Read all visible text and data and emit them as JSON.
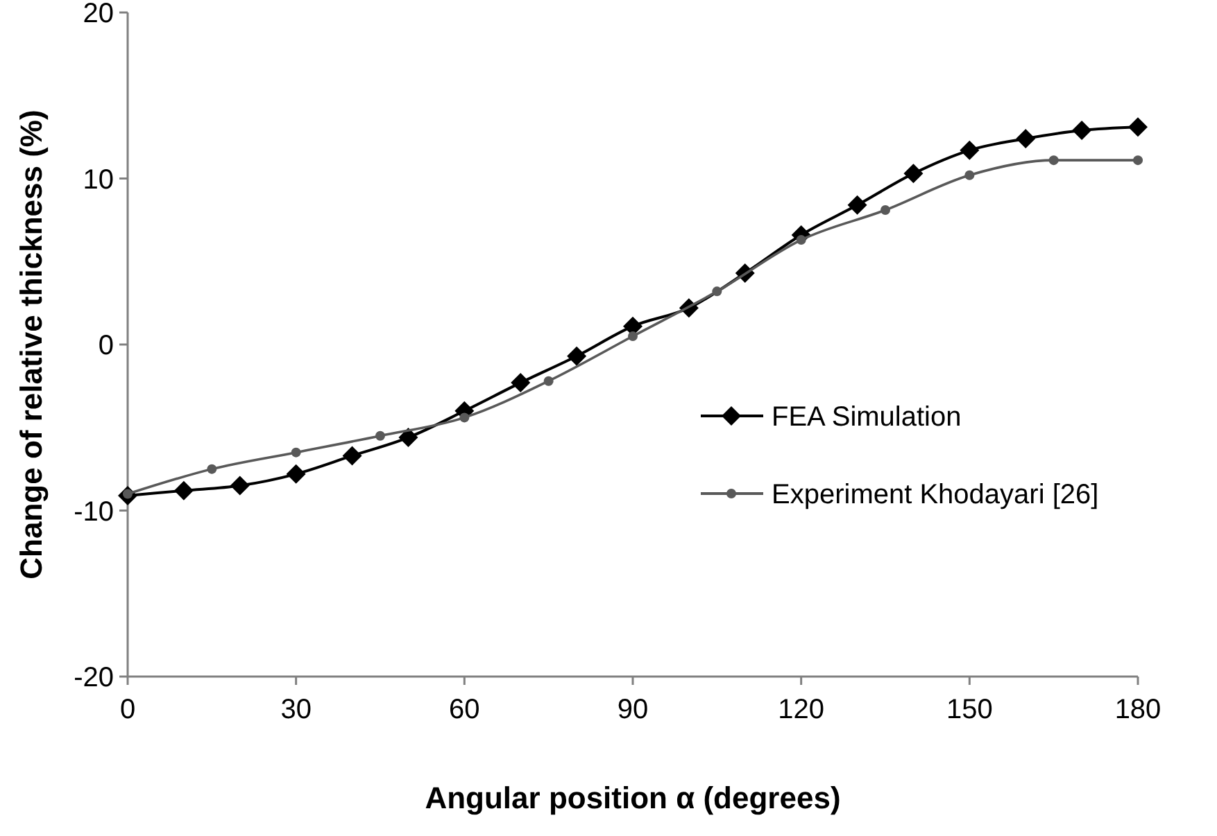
{
  "chart_data": {
    "type": "line",
    "xlabel": "Angular position α (degrees)",
    "ylabel": "Change of relative thickness  (%)",
    "xlim": [
      0,
      180
    ],
    "xticks": [
      0,
      30,
      60,
      90,
      120,
      150,
      180
    ],
    "ylim": [
      -20,
      20
    ],
    "yticks": [
      -20,
      -10,
      0,
      10,
      20
    ],
    "grid": false,
    "legend": "right",
    "line_style": "solid",
    "series": [
      {
        "name": "FEA Simulation",
        "color": "#000000",
        "marker": "diamond",
        "x": [
          0,
          10,
          20,
          30,
          40,
          50,
          60,
          70,
          80,
          90,
          100,
          110,
          120,
          130,
          140,
          150,
          160,
          170,
          180
        ],
        "values": [
          -9.1,
          -8.8,
          -8.5,
          -7.8,
          -6.7,
          -5.6,
          -4.0,
          -2.3,
          -0.7,
          1.1,
          2.2,
          4.3,
          6.6,
          8.4,
          10.3,
          11.7,
          12.4,
          12.9,
          13.1
        ]
      },
      {
        "name": "Experiment Khodayari [26]",
        "color": "#595959",
        "marker": "circle",
        "x": [
          0,
          15,
          30,
          45,
          60,
          75,
          90,
          105,
          120,
          135,
          150,
          165,
          180
        ],
        "values": [
          -9.0,
          -7.5,
          -6.5,
          -5.5,
          -4.4,
          -2.2,
          0.5,
          3.2,
          6.3,
          8.1,
          10.2,
          11.1,
          11.1
        ]
      }
    ]
  }
}
